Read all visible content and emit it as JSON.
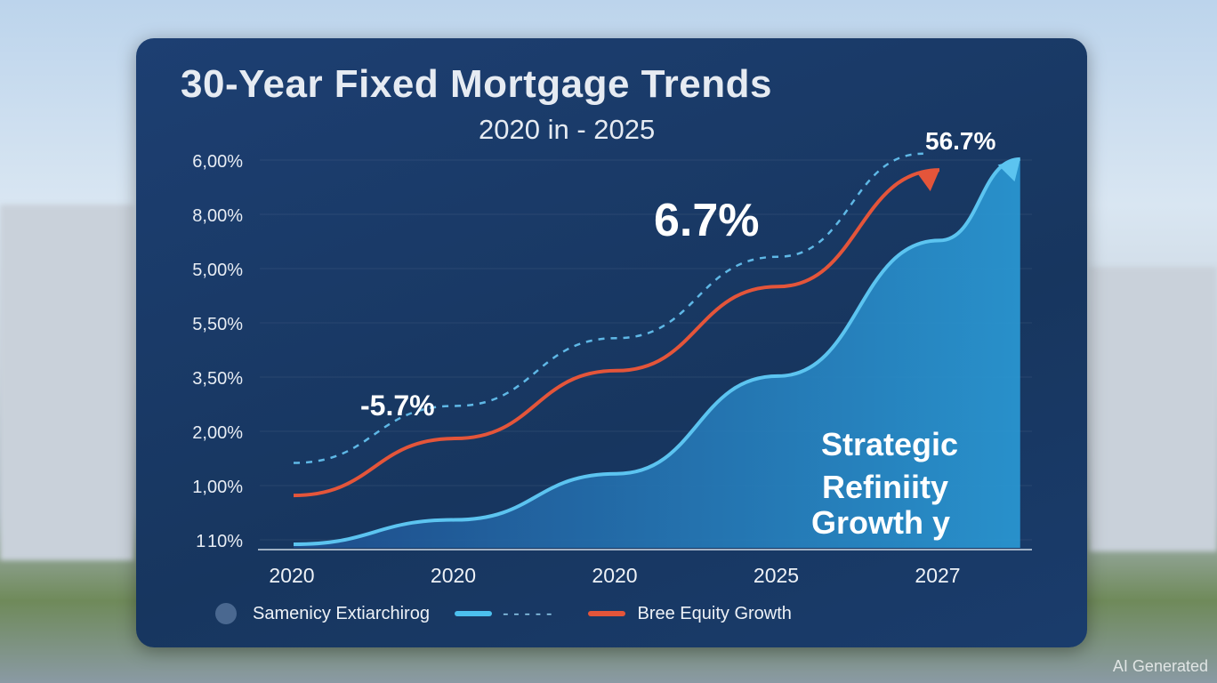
{
  "chart_data": {
    "type": "area",
    "title": "30-Year Fixed Mortgage Trends",
    "subtitle": "2020 in - 2025",
    "y_tick_labels": [
      "1 10%",
      "1,00%",
      "2,00%",
      "3,50%",
      "5,50%",
      "5,00%",
      "8,00%",
      "6,00%"
    ],
    "x_tick_labels": [
      "2020",
      "2020",
      "2020",
      "2025",
      "2027"
    ],
    "grid": true,
    "series": [
      {
        "name": "Bree Equity Growth",
        "style": "solid-line",
        "color": "#e4553a",
        "x": [
          0,
          1,
          2,
          3,
          4
        ],
        "y": [
          0.9,
          1.95,
          3.2,
          4.75,
          6.9
        ]
      },
      {
        "name": "dashed",
        "style": "dashed-line",
        "color": "#5fb8e6",
        "x": [
          0,
          1,
          2,
          3,
          3.9
        ],
        "y": [
          1.5,
          2.55,
          3.8,
          5.3,
          7.2
        ]
      },
      {
        "name": "Samenicy Extiarchirog",
        "style": "area",
        "color": "#3aa6e0",
        "x": [
          0,
          1,
          2,
          3,
          4,
          4.5
        ],
        "y": [
          0,
          0.45,
          1.3,
          3.1,
          5.6,
          7.1
        ]
      }
    ],
    "annotations": [
      "56.7%",
      "6.7%",
      "-5.7%"
    ],
    "callout": [
      "Strategic",
      "Refiniity",
      "Growth y"
    ]
  },
  "legend": {
    "item1": "Samenicy Extiarchirog",
    "item2": "- - - - -",
    "item3": "Bree Equity Growth"
  },
  "watermark": "AI Generated"
}
